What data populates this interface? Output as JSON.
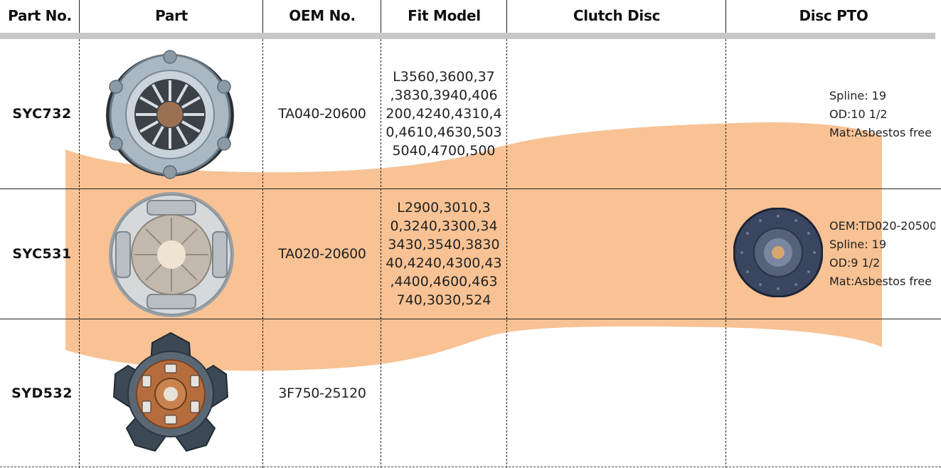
{
  "headers": {
    "part_no": "Part No.",
    "part": "Part",
    "oem_no": "OEM No.",
    "fit_model": "Fit Model",
    "clutch_disc": "Clutch Disc",
    "disc_pto": "Disc PTO"
  },
  "rows": [
    {
      "part_no": "SYC732",
      "oem_no": "TA040-20600",
      "fit_lines": [
        "L3560,3600,37",
        ",3830,3940,406",
        "200,4240,4310,4",
        "0,4610,4630,503",
        "5040,4700,500"
      ],
      "pto_lines": [
        "Spline: 19",
        "OD:10 1/2",
        "Mat:Asbestos free"
      ],
      "image": "pressure-plate-clutch-cover"
    },
    {
      "part_no": "SYC531",
      "oem_no": "TA020-20600",
      "fit_lines": [
        "L2900,3010,3",
        "0,3240,3300,34",
        "3430,3540,3830",
        "40,4240,4300,43",
        ",4400,4600,463",
        "740,3030,524"
      ],
      "pto_lines": [
        "OEM:TD020-20500",
        "Spline: 19",
        "OD:9 1/2",
        "Mat:Asbestos free"
      ],
      "image": "pressure-plate-clutch-cover",
      "pto_image": "pto-disc"
    },
    {
      "part_no": "SYD532",
      "oem_no": "3F750-25120",
      "image": "clutch-disc-button"
    }
  ],
  "colors": {
    "highlight_band": "#f6b57c",
    "header_bar": "#c7c7c7",
    "grid": "#222222"
  }
}
